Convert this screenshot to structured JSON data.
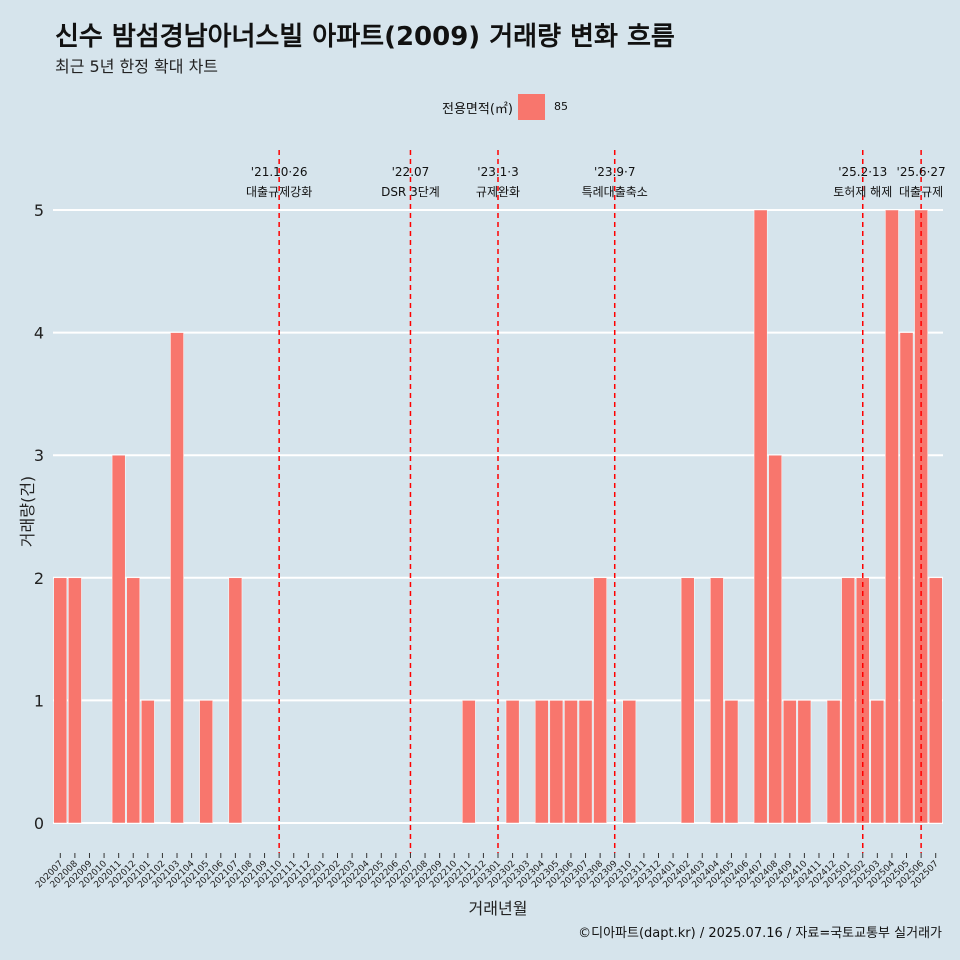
{
  "header": {
    "title": "신수 밤섬경남아너스빌 아파트(2009) 거래량 변화 흐름",
    "subtitle": "최근 5년 한정 확대 차트"
  },
  "legend": {
    "title": "전용면적(㎡)",
    "label": "85",
    "color": "#f8766d"
  },
  "caption": "©디아파트(dapt.kr) / 2025.07.16 / 자료=국토교통부 실거래가",
  "chart_data": {
    "type": "bar",
    "xlabel": "거래년월",
    "ylabel": "거래량(건)",
    "ylim": [
      0,
      5
    ],
    "yticks": [
      0,
      1,
      2,
      3,
      4,
      5
    ],
    "grid": true,
    "legend_position": "top",
    "bar_color": "#f8766d",
    "series": [
      {
        "name": "85"
      }
    ],
    "categories": [
      "202007",
      "202008",
      "202009",
      "202010",
      "202011",
      "202012",
      "202101",
      "202102",
      "202103",
      "202104",
      "202105",
      "202106",
      "202107",
      "202108",
      "202109",
      "202110",
      "202111",
      "202112",
      "202201",
      "202202",
      "202203",
      "202204",
      "202205",
      "202206",
      "202207",
      "202208",
      "202209",
      "202210",
      "202211",
      "202212",
      "202301",
      "202302",
      "202303",
      "202304",
      "202305",
      "202306",
      "202307",
      "202308",
      "202309",
      "202310",
      "202311",
      "202312",
      "202401",
      "202402",
      "202403",
      "202404",
      "202405",
      "202406",
      "202407",
      "202408",
      "202409",
      "202410",
      "202411",
      "202412",
      "202501",
      "202502",
      "202503",
      "202504",
      "202505",
      "202506",
      "202507"
    ],
    "values": [
      2,
      2,
      0,
      0,
      3,
      2,
      1,
      0,
      4,
      0,
      1,
      0,
      2,
      0,
      0,
      0,
      0,
      0,
      0,
      0,
      0,
      0,
      0,
      0,
      0,
      0,
      0,
      0,
      1,
      0,
      0,
      1,
      0,
      1,
      1,
      1,
      1,
      2,
      0,
      1,
      0,
      0,
      0,
      2,
      0,
      2,
      1,
      0,
      5,
      3,
      1,
      1,
      0,
      1,
      2,
      2,
      1,
      5,
      4,
      5,
      2
    ],
    "annotations": [
      {
        "category": "202110",
        "date": "'21.10·26",
        "text": "대출규제강화"
      },
      {
        "category": "202207",
        "date": "'22.07",
        "text": "DSR 3단계"
      },
      {
        "category": "202301",
        "date": "'23.1·3",
        "text": "규제완화"
      },
      {
        "category": "202309",
        "date": "'23.9·7",
        "text": "특례대출축소"
      },
      {
        "category": "202502",
        "date": "'25.2·13",
        "text": "토허제 해제"
      },
      {
        "category": "202506",
        "date": "'25.6·27",
        "text": "대출규제"
      }
    ],
    "annotation_color": "#ff0000"
  }
}
